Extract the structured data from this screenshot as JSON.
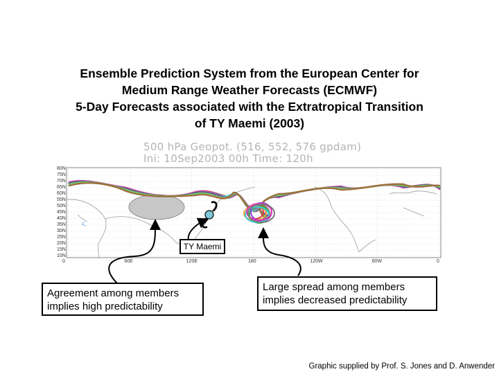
{
  "title": {
    "line1": "Ensemble Prediction System from the European Center for",
    "line2": "Medium Range Weather Forecasts (ECMWF)",
    "line3": "5-Day Forecasts associated with the Extratropical Transition",
    "line4": "of TY Maemi (2003)"
  },
  "map": {
    "header_line1": "500 hPa  Geopot.  (516,  552,  576  gpdam)",
    "header_line2": "Ini:  10Sep2003  00h  Time:  120h",
    "latitude_labels": [
      "80N",
      "75N",
      "70N",
      "65N",
      "60N",
      "55N",
      "50N",
      "45N",
      "40N",
      "35N",
      "30N",
      "25N",
      "20N",
      "15N",
      "10N"
    ],
    "longitude_labels": [
      "0",
      "60E",
      "120E",
      "180",
      "120W",
      "60W",
      "0"
    ],
    "colors": {
      "agreement_region": "#c8c8c8",
      "grid": "#d4d4d4",
      "coast": "#9a9a9a",
      "typhoon_symbol": "#000000",
      "typhoon_marker": "#7ec8d8"
    },
    "typhoon_label": "TY Maemi"
  },
  "annotations": {
    "left_line1": "Agreement among members",
    "left_line2": "implies high predictability",
    "right_line1": "Large spread among members",
    "right_line2": "implies decreased predictability"
  },
  "credit": "Graphic supplied by Prof. S. Jones and D. Anwender"
}
